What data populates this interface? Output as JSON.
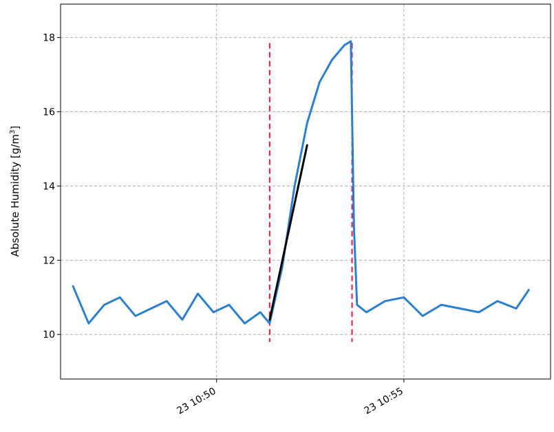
{
  "chart_data": {
    "type": "line",
    "title": "",
    "xlabel": "",
    "ylabel": "Absolute Humidity [g/m",
    "ylabel_sup": "3",
    "ylabel_end": "]",
    "x_format": "DD HH:MM (time, minutes)",
    "xlim": [
      "23 10:45:50",
      "23 10:58:55"
    ],
    "ylim": [
      8.8,
      18.9
    ],
    "grid": true,
    "xticks": [
      {
        "value": "23 10:50",
        "label": "23 10:50"
      },
      {
        "value": "23 10:55",
        "label": "23 10:55"
      }
    ],
    "yticks": [
      10,
      12,
      14,
      16,
      18
    ],
    "colors": {
      "series": "#2a7fd0",
      "fit": "#000000",
      "markers": "#e8163a",
      "grid": "#b0b0b0"
    },
    "series": [
      {
        "x": [
          "23 10:46:10",
          "23 10:46:35",
          "23 10:47:00",
          "23 10:47:25",
          "23 10:47:50",
          "23 10:48:15",
          "23 10:48:40",
          "23 10:49:05",
          "23 10:49:30",
          "23 10:49:55",
          "23 10:50:20",
          "23 10:50:45",
          "23 10:51:10",
          "23 10:51:25",
          "23 10:51:45",
          "23 10:52:05",
          "23 10:52:25",
          "23 10:52:45",
          "23 10:53:05",
          "23 10:53:25",
          "23 10:53:35",
          "23 10:53:40",
          "23 10:53:45",
          "23 10:54:00",
          "23 10:54:30",
          "23 10:55:00",
          "23 10:55:30",
          "23 10:56:00",
          "23 10:56:30",
          "23 10:57:00",
          "23 10:57:30",
          "23 10:58:00",
          "23 10:58:20"
        ],
        "values": [
          11.3,
          10.3,
          10.8,
          11.0,
          10.5,
          10.7,
          10.9,
          10.4,
          11.1,
          10.6,
          10.8,
          10.3,
          10.6,
          10.3,
          11.8,
          14.0,
          15.7,
          16.8,
          17.4,
          17.8,
          17.9,
          12.9,
          10.8,
          10.6,
          10.9,
          11.0,
          10.5,
          10.8,
          10.7,
          10.6,
          10.9,
          10.7,
          11.2
        ]
      }
    ],
    "fit_line": {
      "x": [
        "23 10:51:25",
        "23 10:52:25"
      ],
      "values": [
        10.4,
        15.1
      ]
    },
    "vlines": [
      {
        "x": "23 10:51:25",
        "ymin": 9.8,
        "ymax": 17.85
      },
      {
        "x": "23 10:53:37",
        "ymin": 9.8,
        "ymax": 17.85
      }
    ]
  }
}
